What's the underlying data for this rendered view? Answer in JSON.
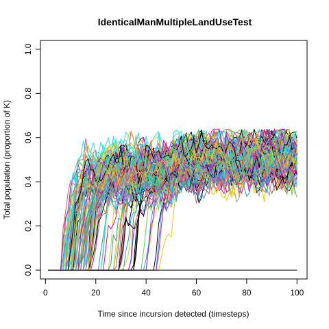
{
  "chart_data": {
    "type": "line",
    "title": "IdenticalManMultipleLandUseTest",
    "xlabel": "Time since incursion detected (timesteps)",
    "ylabel": "Total population (proportion of K)",
    "xlim": [
      -2,
      104
    ],
    "ylim": [
      -0.04,
      1.04
    ],
    "xticks": [
      0,
      20,
      40,
      60,
      80,
      100
    ],
    "yticks": [
      0.0,
      0.2,
      0.4,
      0.6,
      0.8,
      1.0
    ],
    "xtick_labels": [
      "0",
      "20",
      "40",
      "60",
      "80",
      "100"
    ],
    "ytick_labels": [
      "0.0",
      "0.2",
      "0.4",
      "0.6",
      "0.8",
      "1.0"
    ],
    "grid": false,
    "legend": "none",
    "series_count": 120,
    "series_description_values": {
      "x_start": 1,
      "x_end": 100,
      "baseline_value": 0.0,
      "typical_takeoff_range": [
        5,
        48
      ],
      "plateau_range": [
        0.3,
        0.6
      ],
      "max_observed": 0.64,
      "min_late_dip": 0.2
    },
    "palette": [
      "#000000",
      "#DF536B",
      "#61D04F",
      "#2297E6",
      "#28E2E5",
      "#CD0BBC",
      "#F5C710",
      "#9E9E9E"
    ]
  }
}
